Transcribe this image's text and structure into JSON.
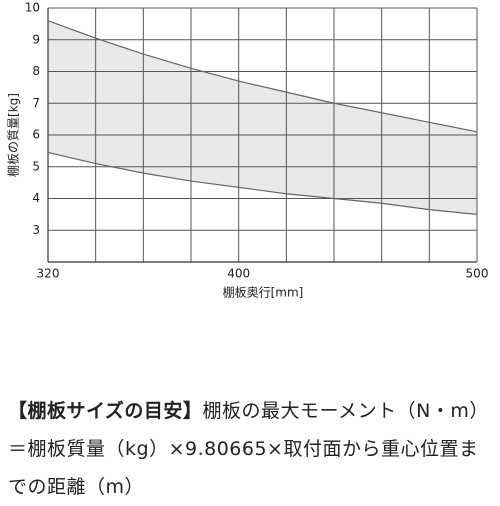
{
  "chart_data": {
    "type": "range",
    "x_label": "棚板奥行[mm]",
    "y_label": "棚板の質量[kg]",
    "x": [
      320,
      340,
      360,
      380,
      400,
      420,
      440,
      460,
      480,
      500
    ],
    "high": [
      9.6,
      9.05,
      8.55,
      8.1,
      7.7,
      7.35,
      7.0,
      6.7,
      6.4,
      6.1
    ],
    "low": [
      5.45,
      5.1,
      4.8,
      4.55,
      4.35,
      4.15,
      4.0,
      3.85,
      3.65,
      3.5
    ],
    "fill_color": "#e9e9e9",
    "line_color": "#666666",
    "xlim": [
      320,
      500
    ],
    "xticks": [
      320,
      400,
      500
    ],
    "x_grid": [
      320,
      340,
      360,
      380,
      400,
      420,
      440,
      460,
      480,
      500
    ],
    "ylim": [
      2,
      10
    ],
    "yticks": [
      3,
      4,
      5,
      6,
      7,
      8,
      9,
      10
    ],
    "grid": true
  },
  "note": {
    "heading": "【棚板サイズの目安】",
    "text": "棚板の最大モーメント（N・m）＝棚板質量（kg）×9.80665×取付面から重心位置までの距離（m）"
  }
}
